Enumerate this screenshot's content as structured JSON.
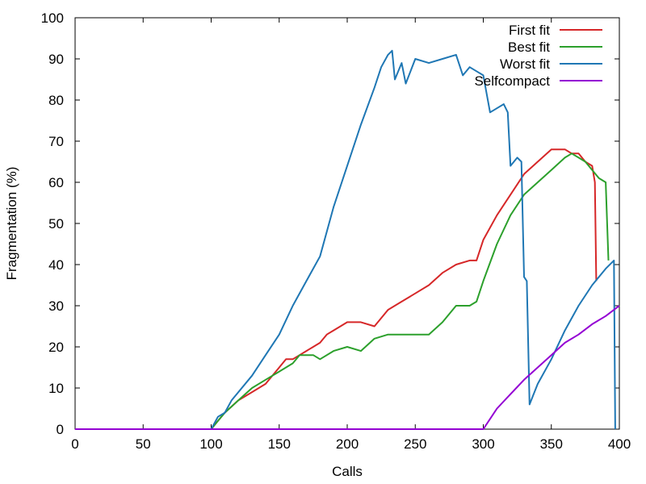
{
  "chart_data": {
    "type": "line",
    "title": "",
    "xlabel": "Calls",
    "ylabel": "Fragmentation (%)",
    "xlim": [
      0,
      400
    ],
    "ylim": [
      0,
      100
    ],
    "xticks": [
      0,
      50,
      100,
      150,
      200,
      250,
      300,
      350,
      400
    ],
    "yticks": [
      0,
      10,
      20,
      30,
      40,
      50,
      60,
      70,
      80,
      90,
      100
    ],
    "grid": false,
    "legend_position": "top-right",
    "series": [
      {
        "name": "First fit",
        "color": "#d62728",
        "points": [
          [
            0,
            0
          ],
          [
            100,
            0
          ],
          [
            105,
            2
          ],
          [
            110,
            4
          ],
          [
            120,
            7
          ],
          [
            130,
            9
          ],
          [
            140,
            11
          ],
          [
            145,
            13
          ],
          [
            150,
            15
          ],
          [
            155,
            17
          ],
          [
            160,
            17
          ],
          [
            165,
            18
          ],
          [
            170,
            19
          ],
          [
            175,
            20
          ],
          [
            180,
            21
          ],
          [
            185,
            23
          ],
          [
            190,
            24
          ],
          [
            195,
            25
          ],
          [
            200,
            26
          ],
          [
            210,
            26
          ],
          [
            220,
            25
          ],
          [
            230,
            29
          ],
          [
            240,
            31
          ],
          [
            250,
            33
          ],
          [
            260,
            35
          ],
          [
            270,
            38
          ],
          [
            280,
            40
          ],
          [
            290,
            41
          ],
          [
            295,
            41
          ],
          [
            300,
            46
          ],
          [
            310,
            52
          ],
          [
            320,
            57
          ],
          [
            330,
            62
          ],
          [
            340,
            65
          ],
          [
            350,
            68
          ],
          [
            360,
            68
          ],
          [
            365,
            67
          ],
          [
            370,
            67
          ],
          [
            375,
            65
          ],
          [
            380,
            64
          ],
          [
            382,
            60
          ],
          [
            383,
            36
          ]
        ]
      },
      {
        "name": "Best fit",
        "color": "#2ca02c",
        "points": [
          [
            0,
            0
          ],
          [
            100,
            0
          ],
          [
            105,
            2
          ],
          [
            110,
            4
          ],
          [
            120,
            7
          ],
          [
            130,
            10
          ],
          [
            140,
            12
          ],
          [
            150,
            14
          ],
          [
            160,
            16
          ],
          [
            165,
            18
          ],
          [
            170,
            18
          ],
          [
            175,
            18
          ],
          [
            180,
            17
          ],
          [
            190,
            19
          ],
          [
            200,
            20
          ],
          [
            210,
            19
          ],
          [
            220,
            22
          ],
          [
            230,
            23
          ],
          [
            240,
            23
          ],
          [
            250,
            23
          ],
          [
            260,
            23
          ],
          [
            270,
            26
          ],
          [
            280,
            30
          ],
          [
            290,
            30
          ],
          [
            295,
            31
          ],
          [
            300,
            36
          ],
          [
            310,
            45
          ],
          [
            320,
            52
          ],
          [
            330,
            57
          ],
          [
            340,
            60
          ],
          [
            350,
            63
          ],
          [
            360,
            66
          ],
          [
            365,
            67
          ],
          [
            370,
            66
          ],
          [
            375,
            65
          ],
          [
            380,
            63
          ],
          [
            385,
            61
          ],
          [
            390,
            60
          ],
          [
            392,
            41
          ]
        ]
      },
      {
        "name": "Worst fit",
        "color": "#1f77b4",
        "points": [
          [
            0,
            0
          ],
          [
            100,
            0
          ],
          [
            105,
            3
          ],
          [
            110,
            4
          ],
          [
            115,
            7
          ],
          [
            120,
            9
          ],
          [
            130,
            13
          ],
          [
            140,
            18
          ],
          [
            150,
            23
          ],
          [
            160,
            30
          ],
          [
            170,
            36
          ],
          [
            180,
            42
          ],
          [
            190,
            54
          ],
          [
            200,
            64
          ],
          [
            210,
            74
          ],
          [
            220,
            83
          ],
          [
            225,
            88
          ],
          [
            230,
            91
          ],
          [
            233,
            92
          ],
          [
            235,
            85
          ],
          [
            240,
            89
          ],
          [
            243,
            84
          ],
          [
            250,
            90
          ],
          [
            260,
            89
          ],
          [
            270,
            90
          ],
          [
            280,
            91
          ],
          [
            285,
            86
          ],
          [
            290,
            88
          ],
          [
            295,
            87
          ],
          [
            300,
            86
          ],
          [
            305,
            77
          ],
          [
            310,
            78
          ],
          [
            315,
            79
          ],
          [
            318,
            77
          ],
          [
            320,
            64
          ],
          [
            325,
            66
          ],
          [
            328,
            65
          ],
          [
            330,
            37
          ],
          [
            332,
            36
          ],
          [
            334,
            6
          ],
          [
            340,
            11
          ],
          [
            350,
            17
          ],
          [
            360,
            24
          ],
          [
            370,
            30
          ],
          [
            380,
            35
          ],
          [
            390,
            39
          ],
          [
            396,
            41
          ],
          [
            397,
            0
          ]
        ]
      },
      {
        "name": "Selfcompact",
        "color": "#9400d3",
        "points": [
          [
            0,
            0
          ],
          [
            300,
            0
          ],
          [
            310,
            5
          ],
          [
            320,
            8.5
          ],
          [
            330,
            12
          ],
          [
            340,
            15
          ],
          [
            350,
            18
          ],
          [
            360,
            21
          ],
          [
            370,
            23
          ],
          [
            380,
            25.5
          ],
          [
            390,
            27.5
          ],
          [
            400,
            30
          ]
        ]
      }
    ]
  }
}
